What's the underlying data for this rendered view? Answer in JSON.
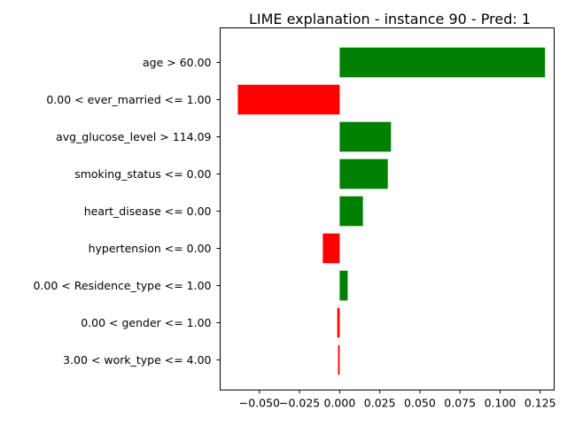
{
  "chart_data": {
    "type": "bar",
    "orientation": "horizontal",
    "title": "LIME explanation - instance 90 - Pred: 1",
    "xlabel": "",
    "ylabel": "",
    "xlim": [
      -0.0745,
      0.1337
    ],
    "grid": false,
    "legend": "none",
    "categories": [
      "age > 60.00",
      "0.00 < ever_married <= 1.00",
      "avg_glucose_level > 114.09",
      "smoking_status <= 0.00",
      "heart_disease <= 0.00",
      "hypertension <= 0.00",
      "0.00 < Residence_type <= 1.00",
      "0.00 < gender <= 1.00",
      "3.00 < work_type <= 4.00"
    ],
    "values": [
      0.128,
      -0.0635,
      0.032,
      0.03,
      0.0145,
      -0.0105,
      0.005,
      -0.0015,
      -0.001
    ],
    "xticks": [
      -0.05,
      -0.025,
      0.0,
      0.025,
      0.05,
      0.075,
      0.1,
      0.125
    ],
    "xtick_labels": [
      "−0.050",
      "−0.025",
      "0.000",
      "0.025",
      "0.050",
      "0.075",
      "0.100",
      "0.125"
    ],
    "colors": {
      "positive": "#008000",
      "negative": "#ff0000"
    }
  }
}
